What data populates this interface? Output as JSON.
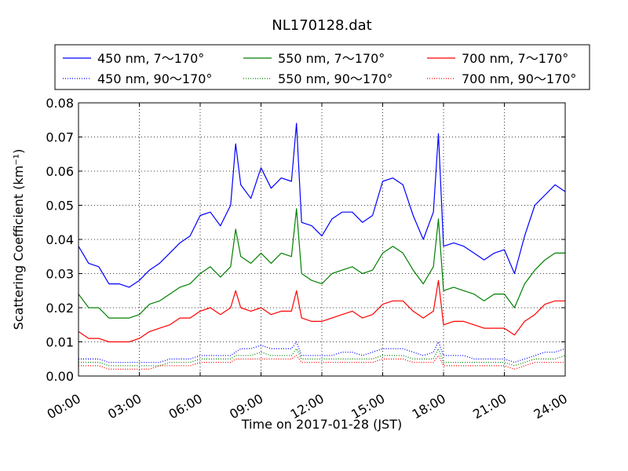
{
  "chart_data": {
    "type": "line",
    "title": "NL170128.dat",
    "xlabel": "Time on 2017-01-28 (JST)",
    "ylabel": "Scattering Coefficient (km⁻¹)",
    "xlim": [
      "00:00",
      "24:00"
    ],
    "ylim": [
      0.0,
      0.08
    ],
    "x_ticks": [
      "00:00",
      "03:00",
      "06:00",
      "09:00",
      "12:00",
      "15:00",
      "18:00",
      "21:00",
      "24:00"
    ],
    "y_ticks": [
      "0.00",
      "0.01",
      "0.02",
      "0.03",
      "0.04",
      "0.05",
      "0.06",
      "0.07",
      "0.08"
    ],
    "grid": true,
    "legend_placement": "top",
    "x": [
      "00:00",
      "00:30",
      "01:00",
      "01:30",
      "02:00",
      "02:30",
      "03:00",
      "03:30",
      "04:00",
      "04:30",
      "05:00",
      "05:30",
      "06:00",
      "06:30",
      "07:00",
      "07:30",
      "07:45",
      "08:00",
      "08:30",
      "09:00",
      "09:30",
      "10:00",
      "10:30",
      "10:45",
      "11:00",
      "11:30",
      "12:00",
      "12:30",
      "13:00",
      "13:30",
      "14:00",
      "14:30",
      "15:00",
      "15:30",
      "16:00",
      "16:30",
      "17:00",
      "17:30",
      "17:45",
      "18:00",
      "18:30",
      "19:00",
      "19:30",
      "20:00",
      "20:30",
      "21:00",
      "21:30",
      "22:00",
      "22:30",
      "23:00",
      "23:30",
      "24:00"
    ],
    "series": [
      {
        "name": "450 nm, 7～170°",
        "color": "#0000ff",
        "style": "solid",
        "values": [
          0.038,
          0.033,
          0.032,
          0.027,
          0.027,
          0.026,
          0.028,
          0.031,
          0.033,
          0.036,
          0.039,
          0.041,
          0.047,
          0.048,
          0.044,
          0.05,
          0.068,
          0.056,
          0.052,
          0.061,
          0.055,
          0.058,
          0.057,
          0.074,
          0.045,
          0.044,
          0.041,
          0.046,
          0.048,
          0.048,
          0.045,
          0.047,
          0.057,
          0.058,
          0.056,
          0.047,
          0.04,
          0.048,
          0.071,
          0.038,
          0.039,
          0.038,
          0.036,
          0.034,
          0.036,
          0.037,
          0.03,
          0.041,
          0.05,
          0.053,
          0.056,
          0.054
        ]
      },
      {
        "name": "550 nm, 7～170°",
        "color": "#008000",
        "style": "solid",
        "values": [
          0.024,
          0.02,
          0.02,
          0.017,
          0.017,
          0.017,
          0.018,
          0.021,
          0.022,
          0.024,
          0.026,
          0.027,
          0.03,
          0.032,
          0.029,
          0.032,
          0.043,
          0.035,
          0.033,
          0.036,
          0.033,
          0.036,
          0.035,
          0.049,
          0.03,
          0.028,
          0.027,
          0.03,
          0.031,
          0.032,
          0.03,
          0.031,
          0.036,
          0.038,
          0.036,
          0.031,
          0.027,
          0.032,
          0.046,
          0.025,
          0.026,
          0.025,
          0.024,
          0.022,
          0.024,
          0.024,
          0.02,
          0.027,
          0.031,
          0.034,
          0.036,
          0.036
        ]
      },
      {
        "name": "700 nm, 7～170°",
        "color": "#ff0000",
        "style": "solid",
        "values": [
          0.013,
          0.011,
          0.011,
          0.01,
          0.01,
          0.01,
          0.011,
          0.013,
          0.014,
          0.015,
          0.017,
          0.017,
          0.019,
          0.02,
          0.018,
          0.02,
          0.025,
          0.02,
          0.019,
          0.02,
          0.018,
          0.019,
          0.019,
          0.025,
          0.017,
          0.016,
          0.016,
          0.017,
          0.018,
          0.019,
          0.017,
          0.018,
          0.021,
          0.022,
          0.022,
          0.019,
          0.017,
          0.019,
          0.028,
          0.015,
          0.016,
          0.016,
          0.015,
          0.014,
          0.014,
          0.014,
          0.012,
          0.016,
          0.018,
          0.021,
          0.022,
          0.022
        ]
      },
      {
        "name": "450 nm, 90～170°",
        "color": "#0000ff",
        "style": "dotted",
        "values": [
          0.005,
          0.005,
          0.005,
          0.004,
          0.004,
          0.004,
          0.004,
          0.004,
          0.004,
          0.005,
          0.005,
          0.005,
          0.006,
          0.006,
          0.006,
          0.006,
          0.007,
          0.008,
          0.008,
          0.009,
          0.008,
          0.008,
          0.008,
          0.01,
          0.006,
          0.006,
          0.006,
          0.006,
          0.007,
          0.007,
          0.006,
          0.007,
          0.008,
          0.008,
          0.008,
          0.007,
          0.006,
          0.007,
          0.01,
          0.006,
          0.006,
          0.006,
          0.005,
          0.005,
          0.005,
          0.005,
          0.004,
          0.005,
          0.006,
          0.007,
          0.007,
          0.008
        ]
      },
      {
        "name": "550 nm, 90～170°",
        "color": "#008000",
        "style": "dotted",
        "values": [
          0.004,
          0.004,
          0.004,
          0.003,
          0.003,
          0.003,
          0.003,
          0.003,
          0.003,
          0.004,
          0.004,
          0.004,
          0.005,
          0.005,
          0.005,
          0.005,
          0.006,
          0.006,
          0.006,
          0.007,
          0.006,
          0.006,
          0.006,
          0.008,
          0.005,
          0.005,
          0.005,
          0.005,
          0.005,
          0.005,
          0.005,
          0.005,
          0.006,
          0.006,
          0.006,
          0.005,
          0.005,
          0.005,
          0.008,
          0.004,
          0.004,
          0.004,
          0.004,
          0.004,
          0.004,
          0.004,
          0.003,
          0.004,
          0.005,
          0.005,
          0.005,
          0.006
        ]
      },
      {
        "name": "700 nm, 90～170°",
        "color": "#ff0000",
        "style": "dotted",
        "values": [
          0.003,
          0.003,
          0.003,
          0.002,
          0.002,
          0.002,
          0.002,
          0.002,
          0.003,
          0.003,
          0.003,
          0.003,
          0.004,
          0.004,
          0.004,
          0.004,
          0.005,
          0.005,
          0.005,
          0.005,
          0.005,
          0.005,
          0.005,
          0.006,
          0.004,
          0.004,
          0.004,
          0.004,
          0.004,
          0.004,
          0.004,
          0.004,
          0.005,
          0.005,
          0.005,
          0.004,
          0.004,
          0.004,
          0.006,
          0.003,
          0.003,
          0.003,
          0.003,
          0.003,
          0.003,
          0.003,
          0.002,
          0.003,
          0.004,
          0.004,
          0.004,
          0.004
        ]
      }
    ]
  }
}
